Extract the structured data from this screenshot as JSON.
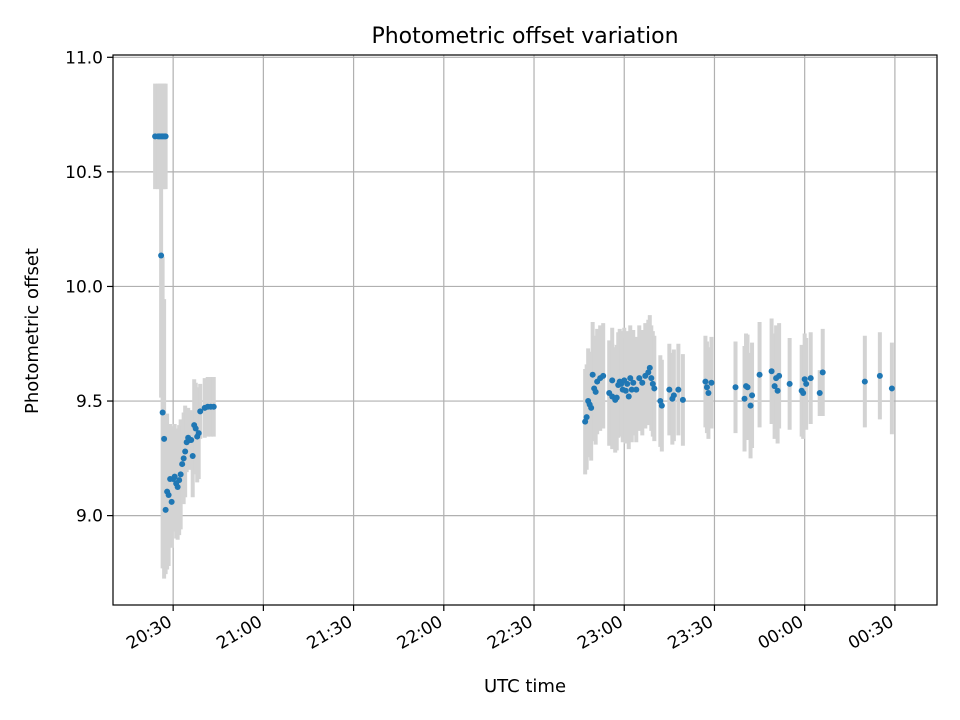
{
  "chart_data": {
    "type": "scatter",
    "title": "Photometric offset variation",
    "xlabel": "UTC time",
    "ylabel": "Photometric offset",
    "x_unit": "UTC time (HH:MM)",
    "xlim": [
      "20:10",
      "00:44"
    ],
    "ylim": [
      8.61,
      11.01
    ],
    "x_ticks": [
      "20:30",
      "21:00",
      "21:30",
      "22:00",
      "22:30",
      "23:00",
      "23:30",
      "00:00",
      "00:30"
    ],
    "y_ticks": [
      "9.0",
      "9.5",
      "10.0",
      "10.5",
      "11.0"
    ],
    "grid": true,
    "legend": "none",
    "colors": {
      "points": "#1f77b4",
      "errorbars": "#d3d3d3",
      "grid": "#b0b0b0"
    },
    "series": [
      {
        "points": [
          {
            "x": "20:24",
            "y": 10.655,
            "err": 0.23
          },
          {
            "x": "20:25",
            "y": 10.655,
            "err": 0.23
          },
          {
            "x": "20:25.5",
            "y": 10.655,
            "err": 0.23
          },
          {
            "x": "20:26",
            "y": 10.655,
            "err": 0.23
          },
          {
            "x": "20:26.5",
            "y": 10.655,
            "err": 0.23
          },
          {
            "x": "20:27",
            "y": 10.655,
            "err": 0.23
          },
          {
            "x": "20:27.5",
            "y": 10.655,
            "err": 0.23
          },
          {
            "x": "20:26",
            "y": 10.135,
            "err": 0.62
          },
          {
            "x": "20:26.5",
            "y": 9.45,
            "err": 0.68
          },
          {
            "x": "20:27",
            "y": 9.335,
            "err": 0.61
          },
          {
            "x": "20:27.5",
            "y": 9.025,
            "err": 0.28
          },
          {
            "x": "20:28",
            "y": 9.105,
            "err": 0.34
          },
          {
            "x": "20:28.5",
            "y": 9.09,
            "err": 0.31
          },
          {
            "x": "20:29",
            "y": 9.16,
            "err": 0.24
          },
          {
            "x": "20:29.5",
            "y": 9.06,
            "err": 0.2
          },
          {
            "x": "20:30",
            "y": 9.16,
            "err": 0.23
          },
          {
            "x": "20:30.5",
            "y": 9.17,
            "err": 0.23
          },
          {
            "x": "20:31",
            "y": 9.14,
            "err": 0.24
          },
          {
            "x": "20:31.5",
            "y": 9.125,
            "err": 0.23
          },
          {
            "x": "20:32",
            "y": 9.155,
            "err": 0.24
          },
          {
            "x": "20:32.5",
            "y": 9.18,
            "err": 0.24
          },
          {
            "x": "20:33",
            "y": 9.225,
            "err": 0.17
          },
          {
            "x": "20:33.5",
            "y": 9.25,
            "err": 0.2
          },
          {
            "x": "20:34",
            "y": 9.28,
            "err": 0.2
          },
          {
            "x": "20:34.5",
            "y": 9.32,
            "err": 0.13
          },
          {
            "x": "20:35",
            "y": 9.34,
            "err": 0.13
          },
          {
            "x": "20:35.5",
            "y": 9.33,
            "err": 0.13
          },
          {
            "x": "20:36",
            "y": 9.33,
            "err": 0.13
          },
          {
            "x": "20:36.5",
            "y": 9.26,
            "err": 0.18
          },
          {
            "x": "20:37",
            "y": 9.395,
            "err": 0.2
          },
          {
            "x": "20:37.5",
            "y": 9.38,
            "err": 0.2
          },
          {
            "x": "20:38",
            "y": 9.345,
            "err": 0.2
          },
          {
            "x": "20:38.5",
            "y": 9.36,
            "err": 0.2
          },
          {
            "x": "20:39",
            "y": 9.455,
            "err": 0.12
          },
          {
            "x": "20:40.5",
            "y": 9.47,
            "err": 0.13
          },
          {
            "x": "20:41.5",
            "y": 9.475,
            "err": 0.13
          },
          {
            "x": "20:42.5",
            "y": 9.475,
            "err": 0.13
          },
          {
            "x": "20:43.5",
            "y": 9.475,
            "err": 0.13
          },
          {
            "x": "22:47",
            "y": 9.41,
            "err": 0.23
          },
          {
            "x": "22:47.5",
            "y": 9.43,
            "err": 0.23
          },
          {
            "x": "22:48",
            "y": 9.5,
            "err": 0.23
          },
          {
            "x": "22:48.5",
            "y": 9.485,
            "err": 0.23
          },
          {
            "x": "22:49",
            "y": 9.47,
            "err": 0.23
          },
          {
            "x": "22:49.5",
            "y": 9.615,
            "err": 0.23
          },
          {
            "x": "22:50",
            "y": 9.555,
            "err": 0.23
          },
          {
            "x": "22:50.5",
            "y": 9.54,
            "err": 0.23
          },
          {
            "x": "22:51",
            "y": 9.585,
            "err": 0.23
          },
          {
            "x": "22:52",
            "y": 9.6,
            "err": 0.23
          },
          {
            "x": "22:53",
            "y": 9.61,
            "err": 0.23
          },
          {
            "x": "22:55",
            "y": 9.535,
            "err": 0.23
          },
          {
            "x": "22:56",
            "y": 9.52,
            "err": 0.23
          },
          {
            "x": "22:56",
            "y": 9.59,
            "err": 0.23
          },
          {
            "x": "22:57",
            "y": 9.505,
            "err": 0.23
          },
          {
            "x": "22:57.5",
            "y": 9.515,
            "err": 0.23
          },
          {
            "x": "22:58",
            "y": 9.57,
            "err": 0.23
          },
          {
            "x": "22:58.5",
            "y": 9.585,
            "err": 0.23
          },
          {
            "x": "22:59",
            "y": 9.575,
            "err": 0.23
          },
          {
            "x": "22:59.5",
            "y": 9.55,
            "err": 0.23
          },
          {
            "x": "23:00",
            "y": 9.59,
            "err": 0.23
          },
          {
            "x": "23:00.5",
            "y": 9.545,
            "err": 0.23
          },
          {
            "x": "23:01",
            "y": 9.575,
            "err": 0.23
          },
          {
            "x": "23:01.5",
            "y": 9.52,
            "err": 0.23
          },
          {
            "x": "23:02",
            "y": 9.6,
            "err": 0.23
          },
          {
            "x": "23:02.5",
            "y": 9.55,
            "err": 0.23
          },
          {
            "x": "23:03",
            "y": 9.58,
            "err": 0.23
          },
          {
            "x": "23:04",
            "y": 9.55,
            "err": 0.23
          },
          {
            "x": "23:05",
            "y": 9.6,
            "err": 0.23
          },
          {
            "x": "23:06",
            "y": 9.58,
            "err": 0.23
          },
          {
            "x": "23:07",
            "y": 9.61,
            "err": 0.23
          },
          {
            "x": "23:08",
            "y": 9.625,
            "err": 0.23
          },
          {
            "x": "23:08.5",
            "y": 9.645,
            "err": 0.23
          },
          {
            "x": "23:09",
            "y": 9.6,
            "err": 0.23
          },
          {
            "x": "23:09.5",
            "y": 9.575,
            "err": 0.23
          },
          {
            "x": "23:10",
            "y": 9.555,
            "err": 0.23
          },
          {
            "x": "23:12",
            "y": 9.5,
            "err": 0.2
          },
          {
            "x": "23:12.5",
            "y": 9.48,
            "err": 0.2
          },
          {
            "x": "23:15",
            "y": 9.55,
            "err": 0.2
          },
          {
            "x": "23:16",
            "y": 9.51,
            "err": 0.2
          },
          {
            "x": "23:16.5",
            "y": 9.525,
            "err": 0.2
          },
          {
            "x": "23:18",
            "y": 9.55,
            "err": 0.2
          },
          {
            "x": "23:19.5",
            "y": 9.505,
            "err": 0.2
          },
          {
            "x": "23:27",
            "y": 9.585,
            "err": 0.2
          },
          {
            "x": "23:27.5",
            "y": 9.56,
            "err": 0.2
          },
          {
            "x": "23:28",
            "y": 9.535,
            "err": 0.2
          },
          {
            "x": "23:29",
            "y": 9.58,
            "err": 0.2
          },
          {
            "x": "23:37",
            "y": 9.56,
            "err": 0.2
          },
          {
            "x": "23:40",
            "y": 9.51,
            "err": 0.23
          },
          {
            "x": "23:40.5",
            "y": 9.565,
            "err": 0.23
          },
          {
            "x": "23:41",
            "y": 9.56,
            "err": 0.23
          },
          {
            "x": "23:42",
            "y": 9.48,
            "err": 0.23
          },
          {
            "x": "23:42.5",
            "y": 9.525,
            "err": 0.23
          },
          {
            "x": "23:45",
            "y": 9.615,
            "err": 0.23
          },
          {
            "x": "23:49",
            "y": 9.63,
            "err": 0.23
          },
          {
            "x": "23:50",
            "y": 9.565,
            "err": 0.23
          },
          {
            "x": "23:50.5",
            "y": 9.6,
            "err": 0.23
          },
          {
            "x": "23:51",
            "y": 9.545,
            "err": 0.23
          },
          {
            "x": "23:51.5",
            "y": 9.61,
            "err": 0.23
          },
          {
            "x": "23:55",
            "y": 9.575,
            "err": 0.2
          },
          {
            "x": "23:59",
            "y": 9.545,
            "err": 0.2
          },
          {
            "x": "23:59.5",
            "y": 9.535,
            "err": 0.2
          },
          {
            "x": "00:00",
            "y": 9.595,
            "err": 0.2
          },
          {
            "x": "00:00.5",
            "y": 9.575,
            "err": 0.2
          },
          {
            "x": "00:02",
            "y": 9.6,
            "err": 0.2
          },
          {
            "x": "00:05",
            "y": 9.535,
            "err": 0.1
          },
          {
            "x": "00:06",
            "y": 9.625,
            "err": 0.19
          },
          {
            "x": "00:20",
            "y": 9.585,
            "err": 0.2
          },
          {
            "x": "00:25",
            "y": 9.61,
            "err": 0.19
          },
          {
            "x": "00:29",
            "y": 9.555,
            "err": 0.2
          }
        ]
      }
    ]
  }
}
